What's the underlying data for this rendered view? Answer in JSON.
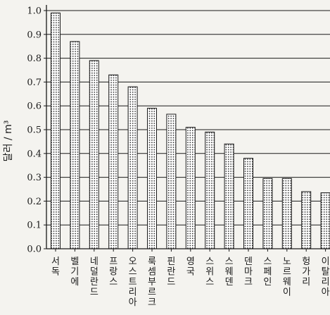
{
  "chart_data": {
    "type": "bar",
    "ylabel": "달러 / m³",
    "ylim": [
      0,
      1.0
    ],
    "yticks": [
      "0.0",
      "0.1",
      "0.2",
      "0.3",
      "0.4",
      "0.5",
      "0.6",
      "0.7",
      "0.8",
      "0.9",
      "1.0"
    ],
    "grid": true,
    "categories": [
      "서독",
      "벨기에",
      "네덜란드",
      "프랑스",
      "오스트리아",
      "룩셈부르크",
      "핀란드",
      "영국",
      "스위스",
      "스웨덴",
      "덴마크",
      "스페인",
      "노르웨이",
      "헝가리",
      "이탈리아"
    ],
    "values": [
      0.99,
      0.87,
      0.79,
      0.73,
      0.68,
      0.59,
      0.565,
      0.51,
      0.49,
      0.44,
      0.38,
      0.295,
      0.295,
      0.24,
      0.235
    ],
    "colors": {
      "bar_fill": "#ffffff",
      "bar_dot": "#222222",
      "axis": "#1a1a1a",
      "background": "#f4f3ef"
    }
  }
}
